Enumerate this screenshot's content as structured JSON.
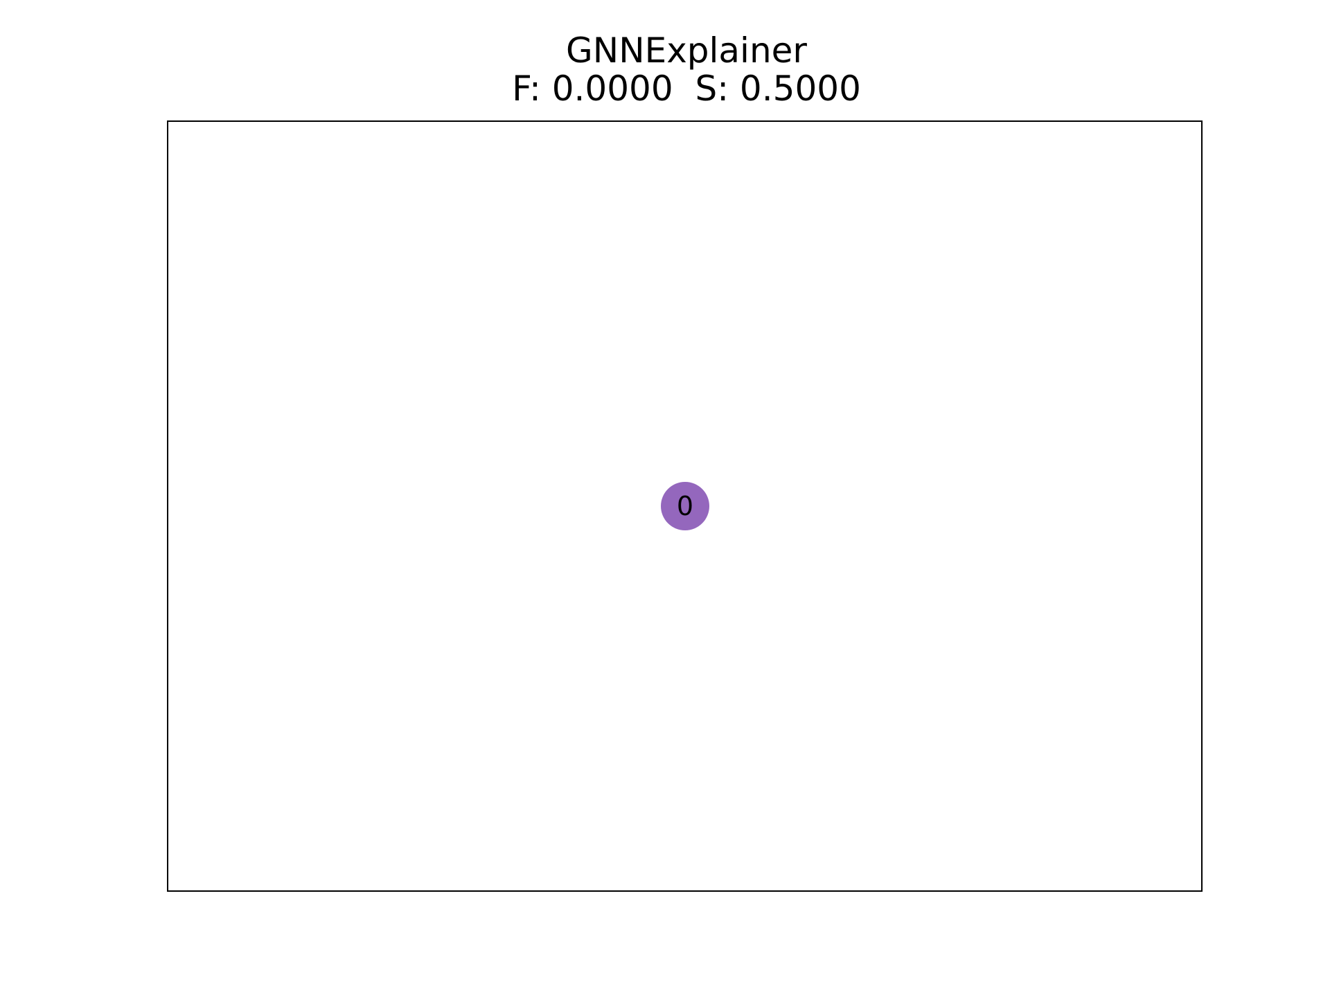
{
  "figure": {
    "title": "GNNExplainer",
    "subtitle": "F: 0.0000  S: 0.5000"
  },
  "graph": {
    "nodes": [
      {
        "id": "node-0",
        "label": "0",
        "color": "#9467bd"
      }
    ],
    "edges": []
  },
  "colors": {
    "node_fill": "#9467bd",
    "frame": "#000000",
    "text": "#000000",
    "background": "#ffffff"
  }
}
